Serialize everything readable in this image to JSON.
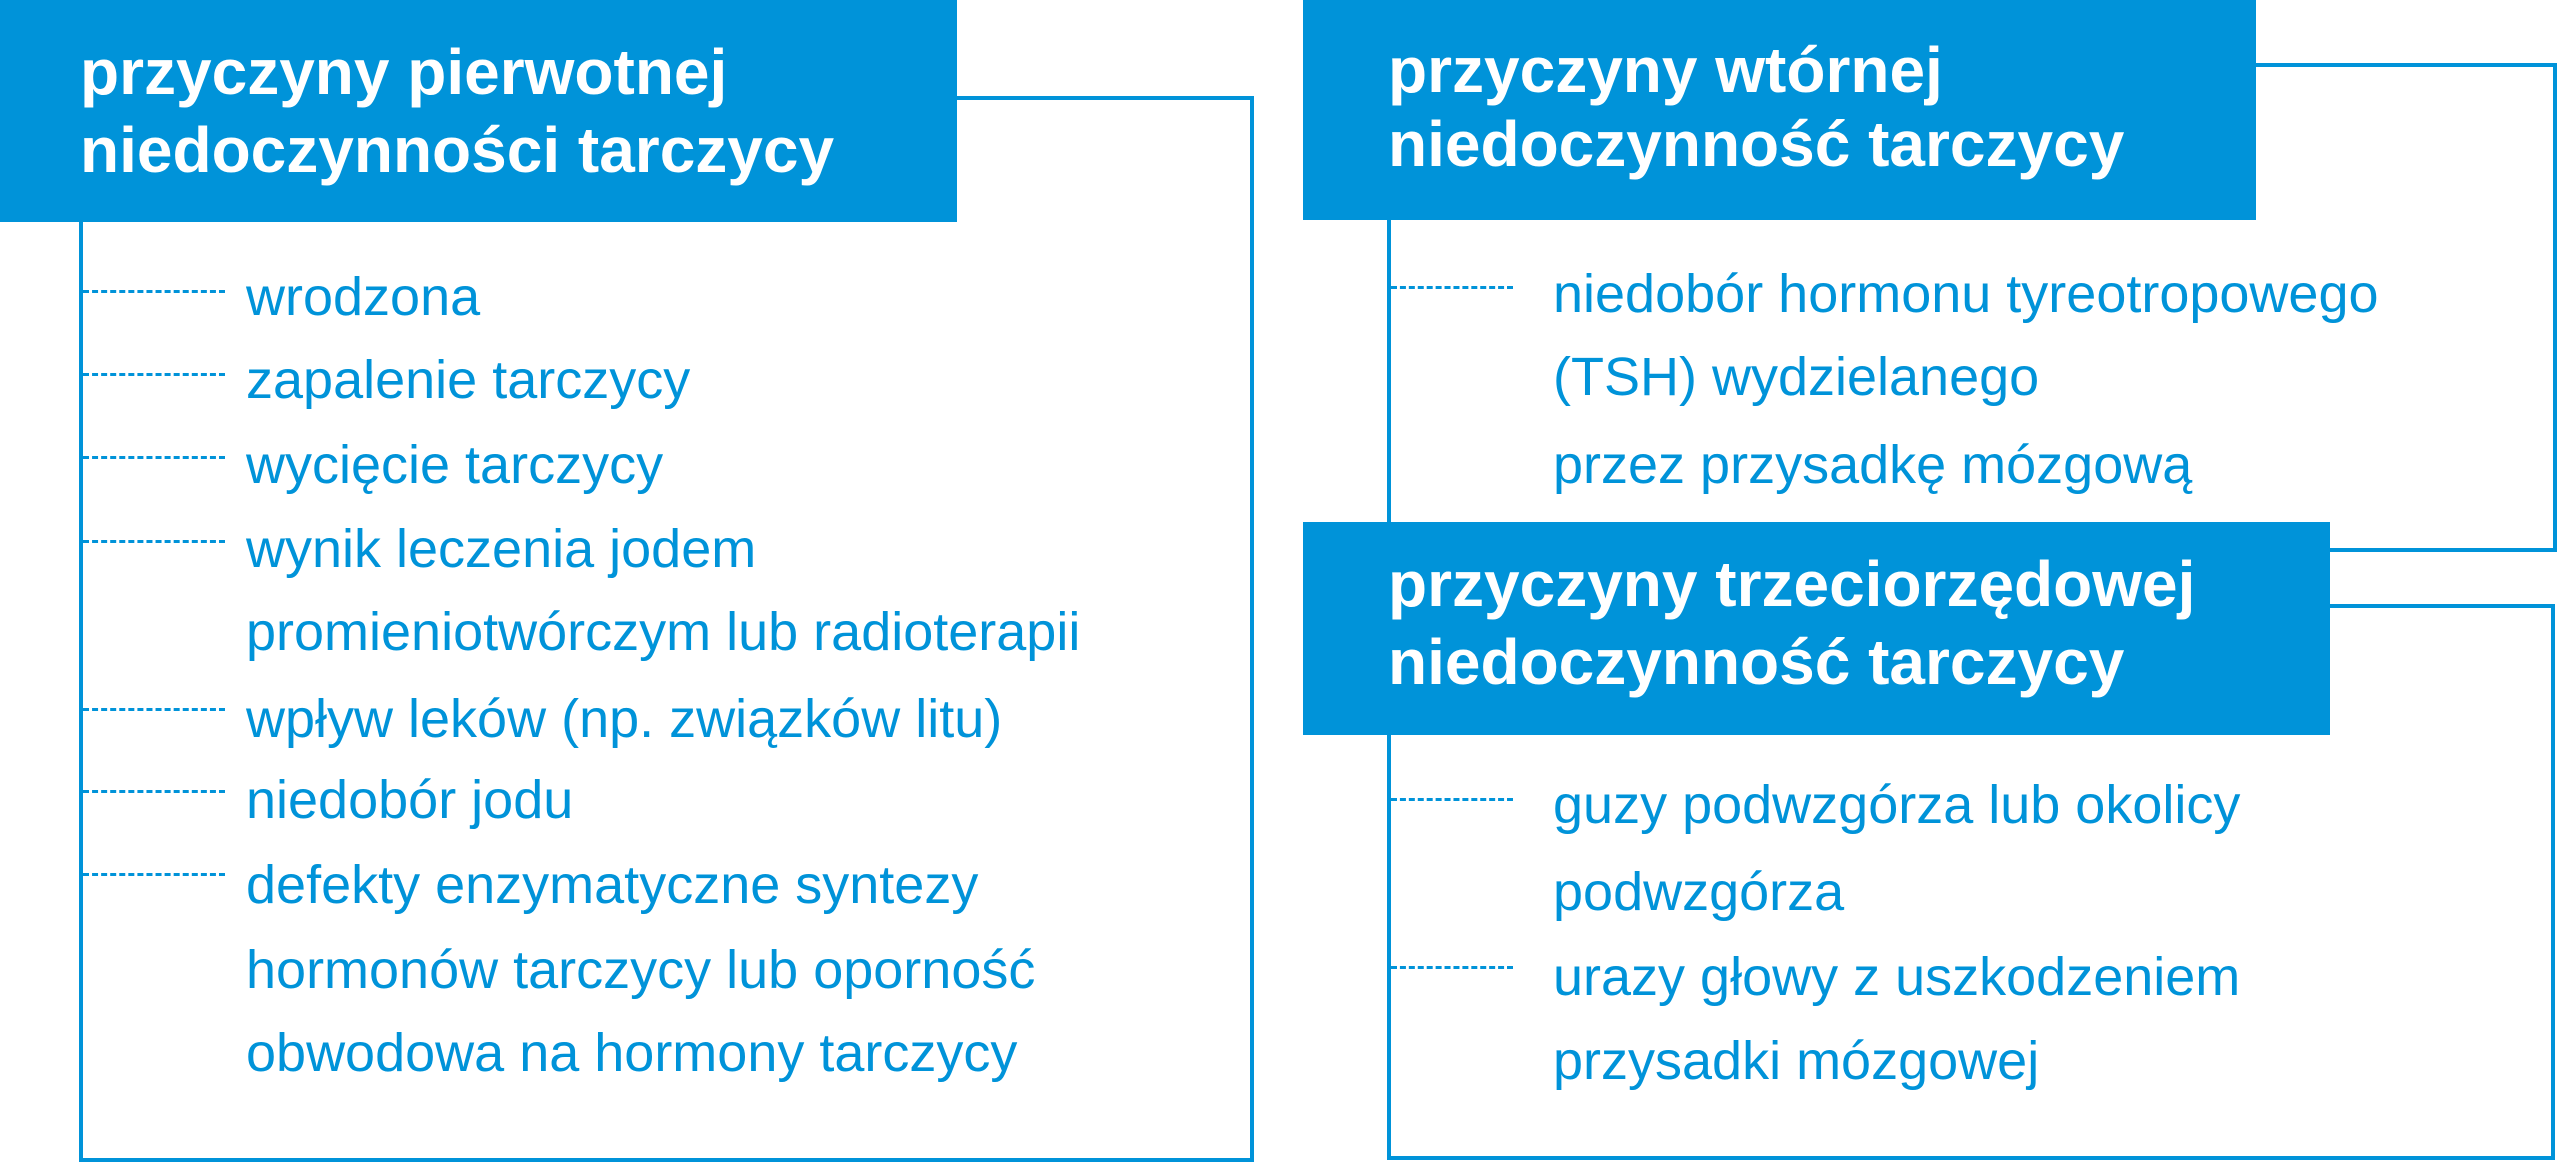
{
  "colors": {
    "accent": "#0093d9",
    "background": "#ffffff"
  },
  "primary": {
    "title": [
      "przyczyny pierwotnej",
      "niedoczynności tarczycy"
    ],
    "items": [
      {
        "lines": [
          "wrodzona"
        ]
      },
      {
        "lines": [
          "zapalenie tarczycy"
        ]
      },
      {
        "lines": [
          "wycięcie tarczycy"
        ]
      },
      {
        "lines": [
          "wynik leczenia jodem",
          "promieniotwórczym lub radioterapii"
        ]
      },
      {
        "lines": [
          "wpływ leków (np. związków litu)"
        ]
      },
      {
        "lines": [
          "niedobór jodu"
        ]
      },
      {
        "lines": [
          "defekty enzymatyczne syntezy",
          "hormonów tarczycy lub oporność",
          "obwodowa na hormony tarczycy"
        ]
      }
    ]
  },
  "secondary": {
    "title": [
      "przyczyny wtórnej",
      "niedoczynność tarczycy"
    ],
    "items": [
      {
        "lines": [
          "niedobór hormonu tyreotropowego",
          "(TSH) wydzielanego",
          "przez przysadkę mózgową"
        ]
      }
    ]
  },
  "tertiary": {
    "title": [
      "przyczyny trzeciorzędowej",
      "niedoczynność tarczycy"
    ],
    "items": [
      {
        "lines": [
          "guzy podwzgórza lub okolicy",
          "podwzgórza"
        ]
      },
      {
        "lines": [
          "urazy głowy z uszkodzeniem",
          "przysadki mózgowej"
        ]
      }
    ]
  }
}
